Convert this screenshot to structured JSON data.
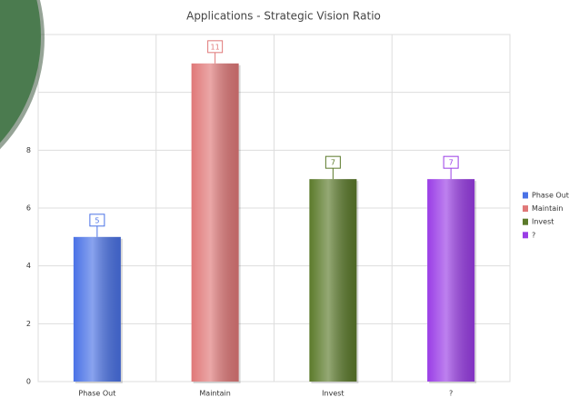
{
  "chart_data": {
    "type": "bar",
    "title": "Applications - Strategic Vision Ratio",
    "categories": [
      "Phase Out",
      "Maintain",
      "Invest",
      "?"
    ],
    "values": [
      5,
      11,
      7,
      7
    ],
    "colors": [
      "#4a72e6",
      "#e07878",
      "#5b7a2a",
      "#9a3de6"
    ],
    "ylim": [
      0,
      12
    ],
    "yticks": [
      0,
      2,
      4,
      6,
      8,
      10
    ],
    "grid": true,
    "legend": "right"
  }
}
